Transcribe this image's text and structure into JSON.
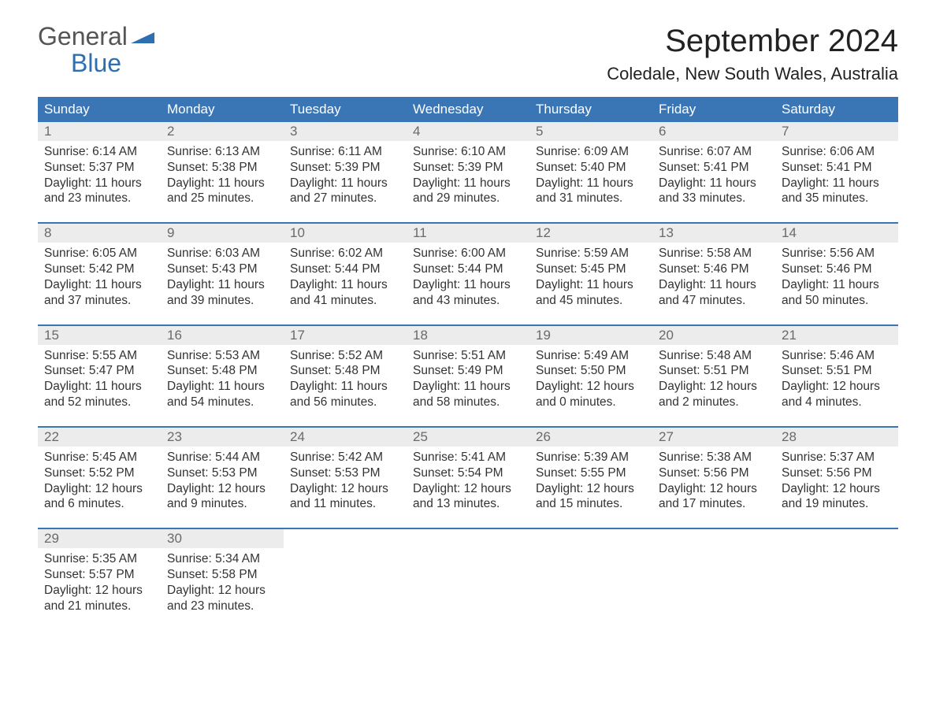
{
  "logo": {
    "general": "General",
    "blue": "Blue",
    "flag_color": "#2f6fb0"
  },
  "title": "September 2024",
  "location": "Coledale, New South Wales, Australia",
  "colors": {
    "header_bg": "#3a76b5",
    "header_text": "#ffffff",
    "daynum_bg": "#ececec",
    "daynum_text": "#6a6a6a",
    "body_text": "#333333",
    "week_border": "#3a76b5",
    "background": "#ffffff"
  },
  "typography": {
    "title_pt": 40,
    "location_pt": 22,
    "weekday_pt": 17,
    "daynum_pt": 17,
    "detail_pt": 15.5
  },
  "weekdays": [
    "Sunday",
    "Monday",
    "Tuesday",
    "Wednesday",
    "Thursday",
    "Friday",
    "Saturday"
  ],
  "weeks": [
    {
      "days": [
        {
          "num": "1",
          "sunrise": "Sunrise: 6:14 AM",
          "sunset": "Sunset: 5:37 PM",
          "daylight1": "Daylight: 11 hours",
          "daylight2": "and 23 minutes."
        },
        {
          "num": "2",
          "sunrise": "Sunrise: 6:13 AM",
          "sunset": "Sunset: 5:38 PM",
          "daylight1": "Daylight: 11 hours",
          "daylight2": "and 25 minutes."
        },
        {
          "num": "3",
          "sunrise": "Sunrise: 6:11 AM",
          "sunset": "Sunset: 5:39 PM",
          "daylight1": "Daylight: 11 hours",
          "daylight2": "and 27 minutes."
        },
        {
          "num": "4",
          "sunrise": "Sunrise: 6:10 AM",
          "sunset": "Sunset: 5:39 PM",
          "daylight1": "Daylight: 11 hours",
          "daylight2": "and 29 minutes."
        },
        {
          "num": "5",
          "sunrise": "Sunrise: 6:09 AM",
          "sunset": "Sunset: 5:40 PM",
          "daylight1": "Daylight: 11 hours",
          "daylight2": "and 31 minutes."
        },
        {
          "num": "6",
          "sunrise": "Sunrise: 6:07 AM",
          "sunset": "Sunset: 5:41 PM",
          "daylight1": "Daylight: 11 hours",
          "daylight2": "and 33 minutes."
        },
        {
          "num": "7",
          "sunrise": "Sunrise: 6:06 AM",
          "sunset": "Sunset: 5:41 PM",
          "daylight1": "Daylight: 11 hours",
          "daylight2": "and 35 minutes."
        }
      ]
    },
    {
      "days": [
        {
          "num": "8",
          "sunrise": "Sunrise: 6:05 AM",
          "sunset": "Sunset: 5:42 PM",
          "daylight1": "Daylight: 11 hours",
          "daylight2": "and 37 minutes."
        },
        {
          "num": "9",
          "sunrise": "Sunrise: 6:03 AM",
          "sunset": "Sunset: 5:43 PM",
          "daylight1": "Daylight: 11 hours",
          "daylight2": "and 39 minutes."
        },
        {
          "num": "10",
          "sunrise": "Sunrise: 6:02 AM",
          "sunset": "Sunset: 5:44 PM",
          "daylight1": "Daylight: 11 hours",
          "daylight2": "and 41 minutes."
        },
        {
          "num": "11",
          "sunrise": "Sunrise: 6:00 AM",
          "sunset": "Sunset: 5:44 PM",
          "daylight1": "Daylight: 11 hours",
          "daylight2": "and 43 minutes."
        },
        {
          "num": "12",
          "sunrise": "Sunrise: 5:59 AM",
          "sunset": "Sunset: 5:45 PM",
          "daylight1": "Daylight: 11 hours",
          "daylight2": "and 45 minutes."
        },
        {
          "num": "13",
          "sunrise": "Sunrise: 5:58 AM",
          "sunset": "Sunset: 5:46 PM",
          "daylight1": "Daylight: 11 hours",
          "daylight2": "and 47 minutes."
        },
        {
          "num": "14",
          "sunrise": "Sunrise: 5:56 AM",
          "sunset": "Sunset: 5:46 PM",
          "daylight1": "Daylight: 11 hours",
          "daylight2": "and 50 minutes."
        }
      ]
    },
    {
      "days": [
        {
          "num": "15",
          "sunrise": "Sunrise: 5:55 AM",
          "sunset": "Sunset: 5:47 PM",
          "daylight1": "Daylight: 11 hours",
          "daylight2": "and 52 minutes."
        },
        {
          "num": "16",
          "sunrise": "Sunrise: 5:53 AM",
          "sunset": "Sunset: 5:48 PM",
          "daylight1": "Daylight: 11 hours",
          "daylight2": "and 54 minutes."
        },
        {
          "num": "17",
          "sunrise": "Sunrise: 5:52 AM",
          "sunset": "Sunset: 5:48 PM",
          "daylight1": "Daylight: 11 hours",
          "daylight2": "and 56 minutes."
        },
        {
          "num": "18",
          "sunrise": "Sunrise: 5:51 AM",
          "sunset": "Sunset: 5:49 PM",
          "daylight1": "Daylight: 11 hours",
          "daylight2": "and 58 minutes."
        },
        {
          "num": "19",
          "sunrise": "Sunrise: 5:49 AM",
          "sunset": "Sunset: 5:50 PM",
          "daylight1": "Daylight: 12 hours",
          "daylight2": "and 0 minutes."
        },
        {
          "num": "20",
          "sunrise": "Sunrise: 5:48 AM",
          "sunset": "Sunset: 5:51 PM",
          "daylight1": "Daylight: 12 hours",
          "daylight2": "and 2 minutes."
        },
        {
          "num": "21",
          "sunrise": "Sunrise: 5:46 AM",
          "sunset": "Sunset: 5:51 PM",
          "daylight1": "Daylight: 12 hours",
          "daylight2": "and 4 minutes."
        }
      ]
    },
    {
      "days": [
        {
          "num": "22",
          "sunrise": "Sunrise: 5:45 AM",
          "sunset": "Sunset: 5:52 PM",
          "daylight1": "Daylight: 12 hours",
          "daylight2": "and 6 minutes."
        },
        {
          "num": "23",
          "sunrise": "Sunrise: 5:44 AM",
          "sunset": "Sunset: 5:53 PM",
          "daylight1": "Daylight: 12 hours",
          "daylight2": "and 9 minutes."
        },
        {
          "num": "24",
          "sunrise": "Sunrise: 5:42 AM",
          "sunset": "Sunset: 5:53 PM",
          "daylight1": "Daylight: 12 hours",
          "daylight2": "and 11 minutes."
        },
        {
          "num": "25",
          "sunrise": "Sunrise: 5:41 AM",
          "sunset": "Sunset: 5:54 PM",
          "daylight1": "Daylight: 12 hours",
          "daylight2": "and 13 minutes."
        },
        {
          "num": "26",
          "sunrise": "Sunrise: 5:39 AM",
          "sunset": "Sunset: 5:55 PM",
          "daylight1": "Daylight: 12 hours",
          "daylight2": "and 15 minutes."
        },
        {
          "num": "27",
          "sunrise": "Sunrise: 5:38 AM",
          "sunset": "Sunset: 5:56 PM",
          "daylight1": "Daylight: 12 hours",
          "daylight2": "and 17 minutes."
        },
        {
          "num": "28",
          "sunrise": "Sunrise: 5:37 AM",
          "sunset": "Sunset: 5:56 PM",
          "daylight1": "Daylight: 12 hours",
          "daylight2": "and 19 minutes."
        }
      ]
    },
    {
      "days": [
        {
          "num": "29",
          "sunrise": "Sunrise: 5:35 AM",
          "sunset": "Sunset: 5:57 PM",
          "daylight1": "Daylight: 12 hours",
          "daylight2": "and 21 minutes."
        },
        {
          "num": "30",
          "sunrise": "Sunrise: 5:34 AM",
          "sunset": "Sunset: 5:58 PM",
          "daylight1": "Daylight: 12 hours",
          "daylight2": "and 23 minutes."
        },
        {
          "empty": true
        },
        {
          "empty": true
        },
        {
          "empty": true
        },
        {
          "empty": true
        },
        {
          "empty": true
        }
      ]
    }
  ]
}
